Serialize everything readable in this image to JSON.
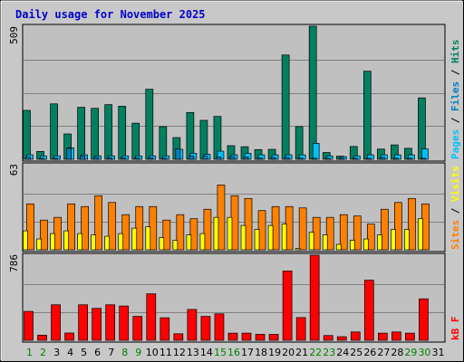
{
  "chart_data": [
    {
      "type": "bar",
      "title": "Daily usage for November 2025",
      "categories": [
        "1",
        "2",
        "3",
        "4",
        "5",
        "6",
        "7",
        "8",
        "9",
        "10",
        "11",
        "12",
        "13",
        "14",
        "15",
        "16",
        "17",
        "18",
        "19",
        "20",
        "21",
        "22",
        "23",
        "24",
        "25",
        "26",
        "27",
        "28",
        "29",
        "30",
        "31"
      ],
      "weekend_days": [
        "1",
        "2",
        "8",
        "9",
        "15",
        "16",
        "22",
        "23",
        "29",
        "30"
      ],
      "ymax_label": "509",
      "ylim": [
        0,
        509
      ],
      "legend": [
        "Pages",
        "Files",
        "Hits"
      ],
      "series": [
        {
          "name": "Hits",
          "color": "#008060",
          "values": [
            187,
            30,
            212,
            97,
            199,
            195,
            209,
            203,
            138,
            268,
            125,
            83,
            179,
            149,
            164,
            52,
            48,
            37,
            38,
            399,
            125,
            509,
            26,
            12,
            49,
            337,
            39,
            55,
            42,
            235,
            0
          ]
        },
        {
          "name": "Files",
          "color": "#00c0ff",
          "values": [
            17,
            13,
            13,
            44,
            17,
            13,
            13,
            13,
            13,
            13,
            13,
            38,
            23,
            19,
            31,
            17,
            23,
            17,
            17,
            17,
            17,
            61,
            13,
            10,
            13,
            17,
            17,
            17,
            17,
            40,
            0
          ]
        },
        {
          "name": "Pages",
          "color": "#0080c0",
          "values": [
            9,
            4,
            4,
            42,
            12,
            7,
            5,
            5,
            5,
            5,
            4,
            40,
            13,
            12,
            9,
            10,
            9,
            5,
            7,
            7,
            5,
            4,
            4,
            4,
            4,
            4,
            7,
            4,
            4,
            4,
            0
          ]
        }
      ]
    },
    {
      "type": "bar",
      "ymax_label": "63",
      "ylim": [
        0,
        63
      ],
      "legend": [
        "Sites",
        "Visits"
      ],
      "series": [
        {
          "name": "Visits",
          "color": "#ff8000",
          "values": [
            34,
            22,
            24,
            34,
            32,
            40,
            35,
            26,
            32,
            32,
            22,
            26,
            23,
            30,
            48,
            40,
            38,
            29,
            32,
            32,
            31,
            24,
            24,
            26,
            25,
            19,
            30,
            35,
            38,
            34,
            0
          ]
        },
        {
          "name": "Sites",
          "color": "#ffff00",
          "values": [
            14,
            8,
            12,
            14,
            12,
            11,
            10,
            12,
            16,
            17,
            9,
            7,
            11,
            12,
            24,
            24,
            18,
            15,
            18,
            19,
            1,
            13,
            11,
            4,
            7,
            8,
            11,
            15,
            15,
            23,
            0
          ]
        }
      ]
    },
    {
      "type": "bar",
      "ymax_label": "786",
      "ylim": [
        0,
        786
      ],
      "legend": [
        "kB F"
      ],
      "series": [
        {
          "name": "kB F",
          "color": "#ff0000",
          "values": [
            267,
            47,
            328,
            67,
            328,
            295,
            328,
            317,
            221,
            429,
            208,
            60,
            285,
            221,
            244,
            66,
            66,
            55,
            55,
            640,
            210,
            786,
            44,
            33,
            77,
            555,
            66,
            77,
            66,
            383,
            0
          ]
        }
      ]
    }
  ]
}
